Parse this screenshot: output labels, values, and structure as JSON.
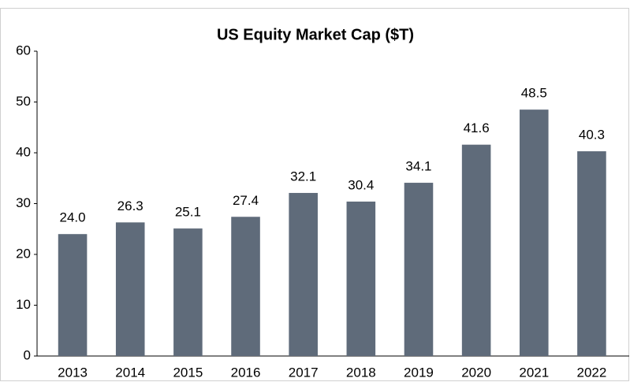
{
  "chart_data": {
    "type": "bar",
    "title": "US Equity Market Cap ($T)",
    "categories": [
      "2013",
      "2014",
      "2015",
      "2016",
      "2017",
      "2018",
      "2019",
      "2020",
      "2021",
      "2022"
    ],
    "values": [
      24.0,
      26.3,
      25.1,
      27.4,
      32.1,
      30.4,
      34.1,
      41.6,
      48.5,
      40.3
    ],
    "value_labels": [
      "24.0",
      "26.3",
      "25.1",
      "27.4",
      "32.1",
      "30.4",
      "34.1",
      "41.6",
      "48.5",
      "40.3"
    ],
    "color": "#5f6b7a",
    "ylim": [
      0,
      60
    ],
    "yticks": [
      0,
      10,
      20,
      30,
      40,
      50,
      60
    ],
    "grid": false
  }
}
